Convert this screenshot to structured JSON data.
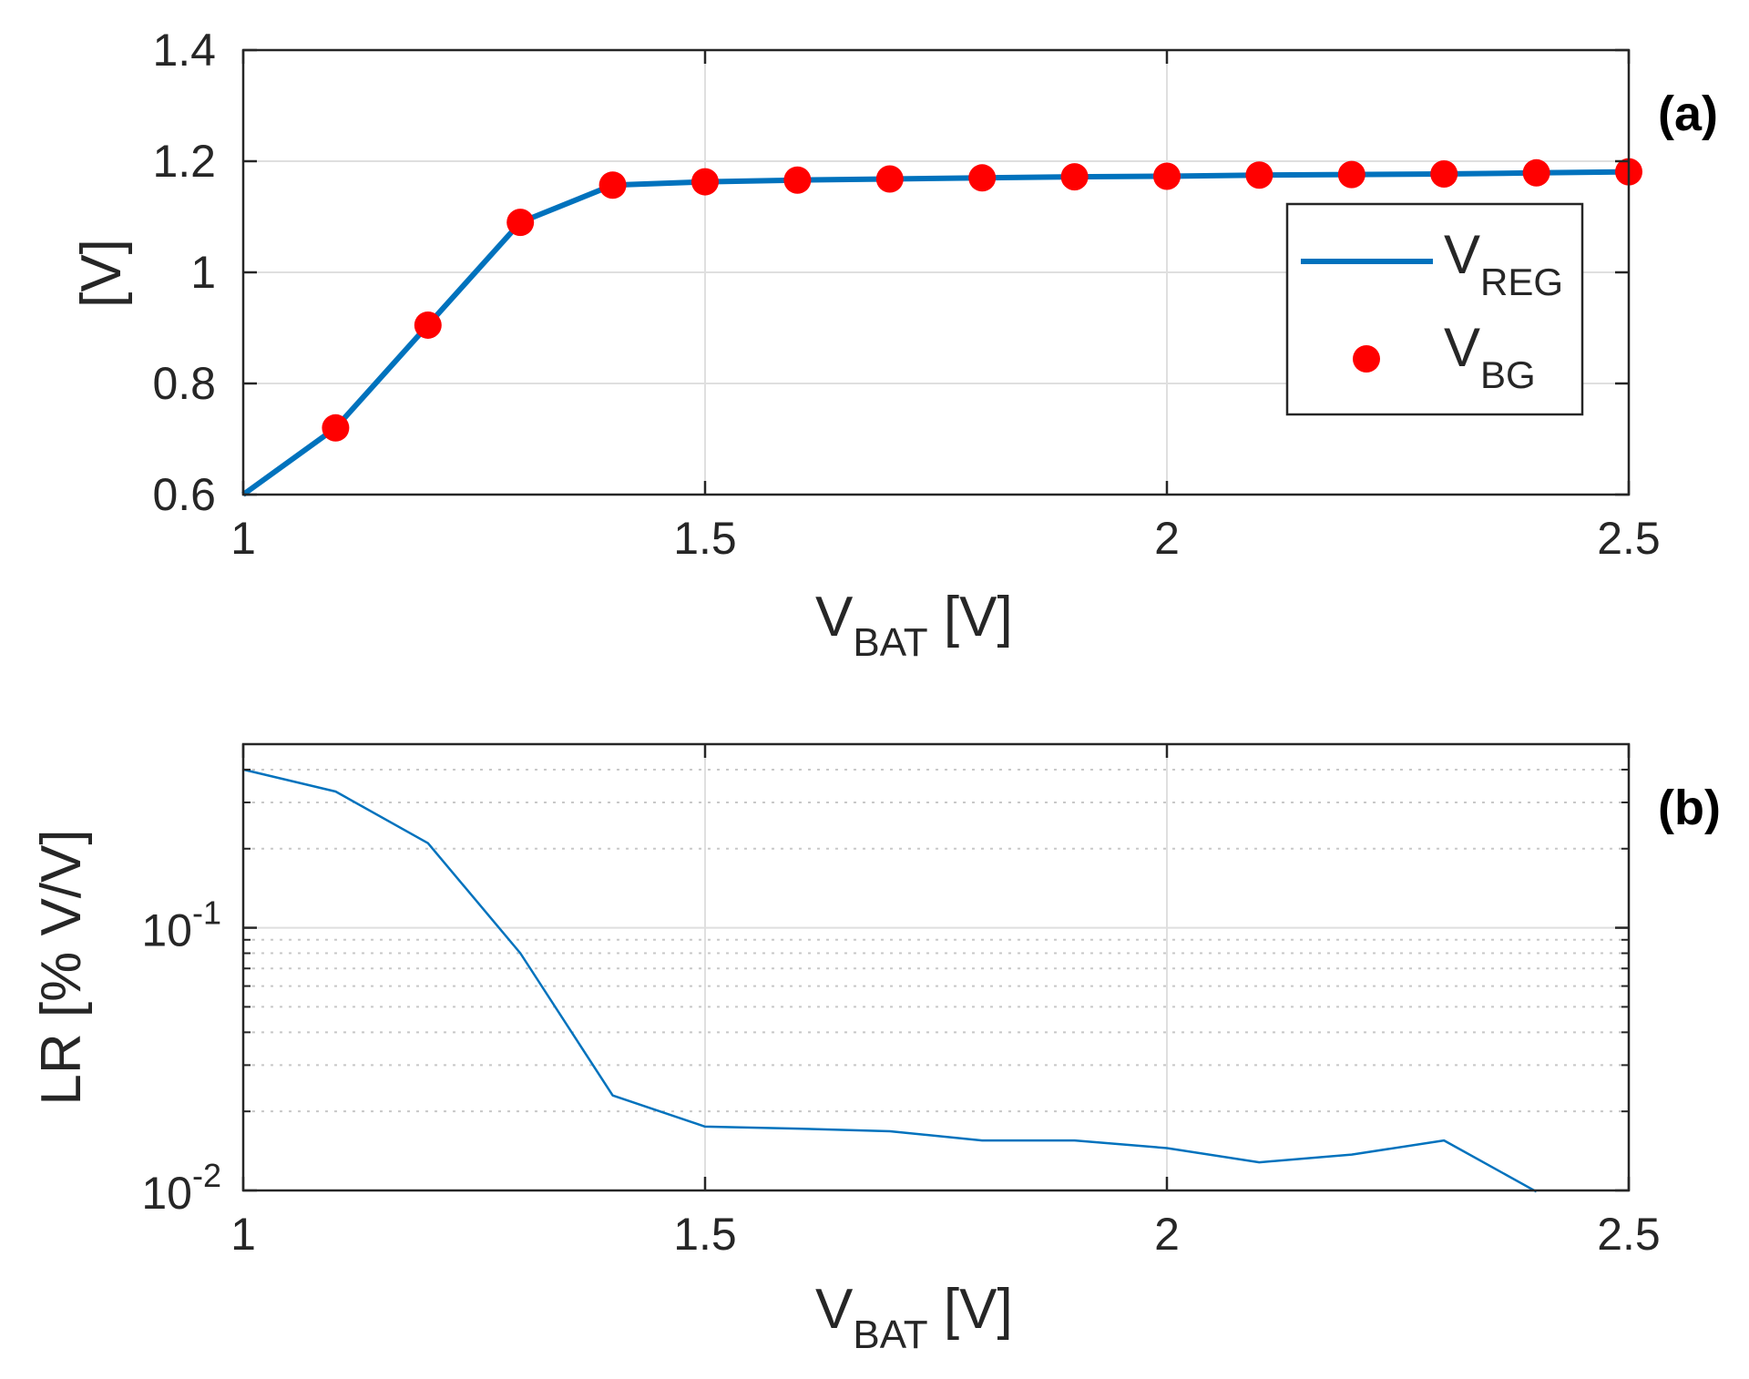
{
  "chart_data": [
    {
      "type": "line",
      "panel": "(a)",
      "xlabel_main": "V",
      "xlabel_sub": "BAT",
      "xlabel_unit": " [V]",
      "ylabel": "[V]",
      "xlim": [
        1,
        2.5
      ],
      "ylim": [
        0.6,
        1.4
      ],
      "xticks": [
        1,
        1.5,
        2,
        2.5
      ],
      "xtick_labels": [
        "1",
        "1.5",
        "2",
        "2.5"
      ],
      "yticks": [
        0.6,
        0.8,
        1.0,
        1.2,
        1.4
      ],
      "ytick_labels": [
        "0.6",
        "0.8",
        "1",
        "1.2",
        "1.4"
      ],
      "grid": true,
      "legend_position": "right",
      "series": [
        {
          "name": "V_REG",
          "legend_main": "V",
          "legend_sub": "REG",
          "style": "line",
          "color": "#0072BD",
          "x": [
            1.0,
            1.1,
            1.2,
            1.3,
            1.4,
            1.5,
            1.6,
            1.7,
            1.8,
            1.9,
            2.0,
            2.1,
            2.2,
            2.3,
            2.4,
            2.5
          ],
          "values": [
            0.6,
            0.72,
            0.905,
            1.09,
            1.157,
            1.163,
            1.166,
            1.168,
            1.17,
            1.172,
            1.173,
            1.175,
            1.176,
            1.177,
            1.179,
            1.181
          ]
        },
        {
          "name": "V_BG",
          "legend_main": "V",
          "legend_sub": "BG",
          "style": "markers",
          "color": "#FF0000",
          "x": [
            1.1,
            1.2,
            1.3,
            1.4,
            1.5,
            1.6,
            1.7,
            1.8,
            1.9,
            2.0,
            2.1,
            2.2,
            2.3,
            2.4,
            2.5
          ],
          "values": [
            0.72,
            0.905,
            1.09,
            1.157,
            1.163,
            1.166,
            1.168,
            1.17,
            1.172,
            1.173,
            1.175,
            1.176,
            1.177,
            1.179,
            1.181
          ]
        }
      ]
    },
    {
      "type": "line",
      "panel": "(b)",
      "xlabel_main": "V",
      "xlabel_sub": "BAT",
      "xlabel_unit": " [V]",
      "ylabel": "LR [% V/V]",
      "yscale": "log",
      "xlim": [
        1,
        2.5
      ],
      "ylim": [
        0.01,
        0.5
      ],
      "xticks": [
        1,
        1.5,
        2,
        2.5
      ],
      "xtick_labels": [
        "1",
        "1.5",
        "2",
        "2.5"
      ],
      "ytick_major": [
        {
          "value": 0.01,
          "base": "10",
          "exp": "-2"
        },
        {
          "value": 0.1,
          "base": "10",
          "exp": "-1"
        }
      ],
      "ytick_minor": [
        0.02,
        0.03,
        0.04,
        0.05,
        0.06,
        0.07,
        0.08,
        0.09,
        0.2,
        0.3,
        0.4
      ],
      "grid": true,
      "series": [
        {
          "name": "LR",
          "color": "#0072BD",
          "x": [
            1.0,
            1.1,
            1.2,
            1.3,
            1.4,
            1.5,
            1.6,
            1.7,
            1.8,
            1.9,
            2.0,
            2.1,
            2.2,
            2.3,
            2.4
          ],
          "values": [
            0.4,
            0.33,
            0.21,
            0.08,
            0.023,
            0.0175,
            0.0172,
            0.0168,
            0.0155,
            0.0155,
            0.0145,
            0.0128,
            0.0137,
            0.0155,
            0.0099
          ]
        }
      ]
    }
  ]
}
